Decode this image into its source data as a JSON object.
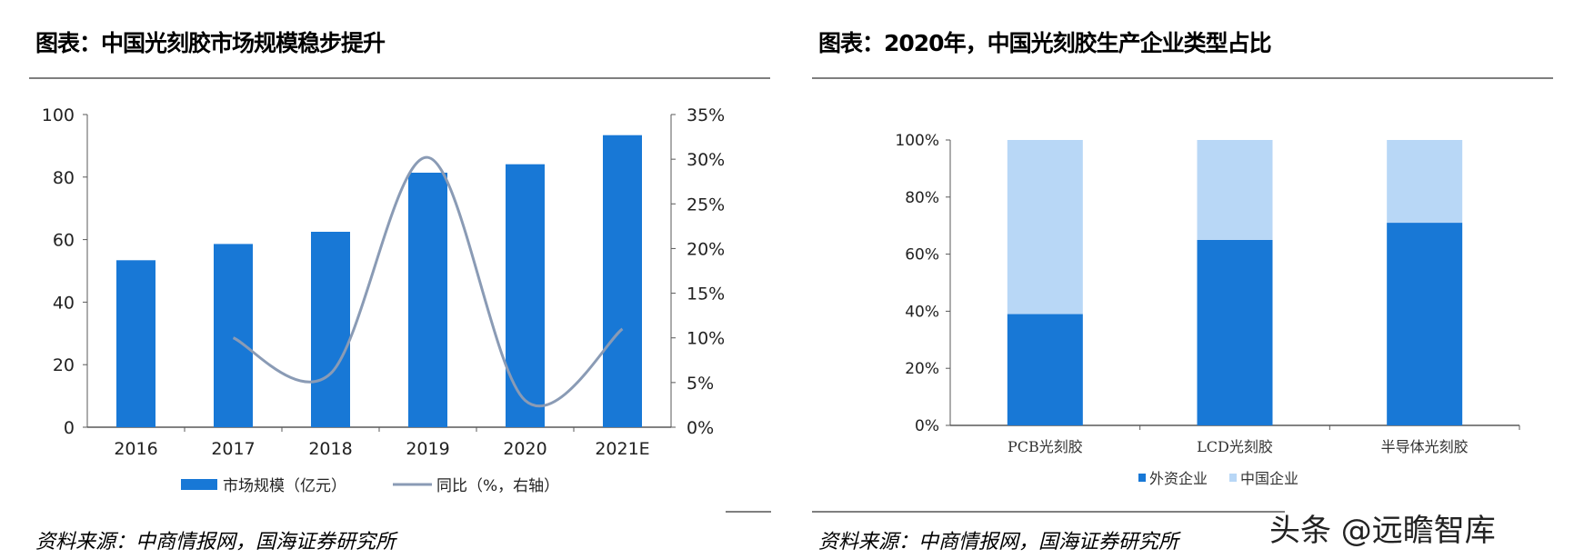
{
  "left": {
    "title": "图表：中国光刻胶市场规模稳步提升",
    "source": "资料来源：中商情报网，国海证券研究所"
  },
  "right": {
    "title": "图表：2020年，中国光刻胶生产企业类型占比",
    "source": "资料来源：中商情报网，国海证券研究所"
  },
  "watermark": "头条 @远瞻智库",
  "chart_data": [
    {
      "type": "bar+line",
      "categories": [
        "2016",
        "2017",
        "2018",
        "2019",
        "2020",
        "2021E"
      ],
      "series": [
        {
          "name": "市场规模（亿元）",
          "type": "bar",
          "axis": "left",
          "color": "#1878d6",
          "values": [
            53.4,
            58.6,
            62.5,
            81.4,
            84.1,
            93.4
          ]
        },
        {
          "name": "同比（%，右轴）",
          "type": "line",
          "axis": "right",
          "color": "#8a9bb5",
          "values": [
            null,
            10.0,
            6.0,
            30.2,
            3.0,
            11.0
          ]
        }
      ],
      "ylim": [
        0,
        100
      ],
      "yticks": [
        "0",
        "20",
        "40",
        "60",
        "80",
        "100"
      ],
      "y2lim": [
        0,
        35
      ],
      "y2ticks": [
        "0%",
        "5%",
        "10%",
        "15%",
        "20%",
        "25%",
        "30%",
        "35%"
      ],
      "legend": "bottom",
      "grid": false
    },
    {
      "type": "stacked-bar",
      "categories": [
        "PCB光刻胶",
        "LCD光刻胶",
        "半导体光刻胶"
      ],
      "series": [
        {
          "name": "外资企业",
          "color": "#1878d6",
          "values": [
            39,
            65,
            71
          ]
        },
        {
          "name": "中国企业",
          "color": "#b8d7f6",
          "values": [
            61,
            35,
            29
          ]
        }
      ],
      "ylim": [
        0,
        100
      ],
      "yticks": [
        "0%",
        "20%",
        "40%",
        "60%",
        "80%",
        "100%"
      ],
      "legend": "bottom",
      "grid": false
    }
  ]
}
